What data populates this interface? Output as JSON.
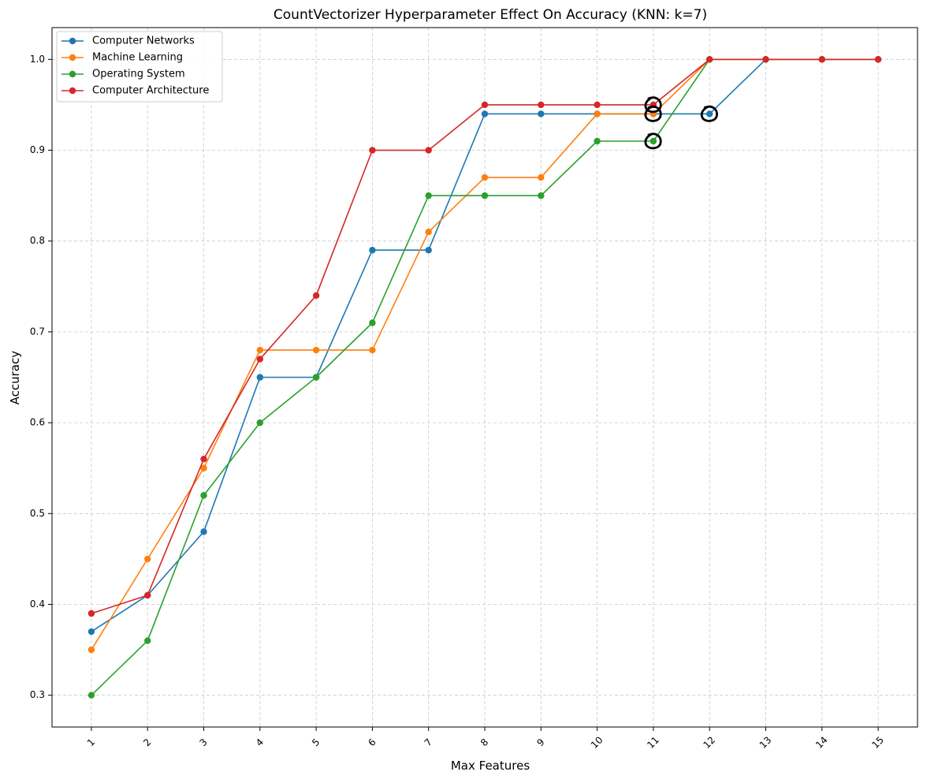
{
  "chart_data": {
    "type": "line",
    "title": "CountVectorizer Hyperparameter Effect On Accuracy (KNN: k=7)",
    "xlabel": "Max Features",
    "ylabel": "Accuracy",
    "x": [
      1,
      2,
      3,
      4,
      5,
      6,
      7,
      8,
      9,
      10,
      11,
      12,
      13,
      14,
      15
    ],
    "x_tick_labels": [
      "1",
      "2",
      "3",
      "4",
      "5",
      "6",
      "7",
      "8",
      "9",
      "10",
      "11",
      "12",
      "13",
      "14",
      "15"
    ],
    "y_ticks": [
      0.3,
      0.4,
      0.5,
      0.6,
      0.7,
      0.8,
      0.9,
      1.0
    ],
    "y_tick_labels": [
      "0.3",
      "0.4",
      "0.5",
      "0.6",
      "0.7",
      "0.8",
      "0.9",
      "1.0"
    ],
    "xlim": [
      0.3,
      15.7
    ],
    "ylim": [
      0.265,
      1.035
    ],
    "grid": true,
    "legend_position": "top-left",
    "series": [
      {
        "name": "Computer Networks",
        "color": "#1f77b4",
        "values": [
          0.37,
          0.41,
          0.48,
          0.65,
          0.65,
          0.79,
          0.79,
          0.94,
          0.94,
          0.94,
          0.94,
          0.94,
          1.0,
          1.0,
          1.0
        ]
      },
      {
        "name": "Machine Learning",
        "color": "#ff7f0e",
        "values": [
          0.35,
          0.45,
          0.55,
          0.68,
          0.68,
          0.68,
          0.81,
          0.87,
          0.87,
          0.94,
          0.94,
          1.0,
          1.0,
          1.0,
          1.0
        ]
      },
      {
        "name": "Operating System",
        "color": "#2ca02c",
        "values": [
          0.3,
          0.36,
          0.52,
          0.6,
          0.65,
          0.71,
          0.85,
          0.85,
          0.85,
          0.91,
          0.91,
          1.0,
          1.0,
          1.0,
          1.0
        ]
      },
      {
        "name": "Computer Architecture",
        "color": "#d62728",
        "values": [
          0.39,
          0.41,
          0.56,
          0.67,
          0.74,
          0.9,
          0.9,
          0.95,
          0.95,
          0.95,
          0.95,
          1.0,
          1.0,
          1.0,
          1.0
        ]
      }
    ],
    "annotations": [
      {
        "type": "hand-drawn-circle",
        "x": 11,
        "y": 0.95
      },
      {
        "type": "hand-drawn-circle",
        "x": 11,
        "y": 0.94
      },
      {
        "type": "hand-drawn-circle",
        "x": 11,
        "y": 0.91
      },
      {
        "type": "hand-drawn-circle",
        "x": 12,
        "y": 0.94
      }
    ]
  }
}
